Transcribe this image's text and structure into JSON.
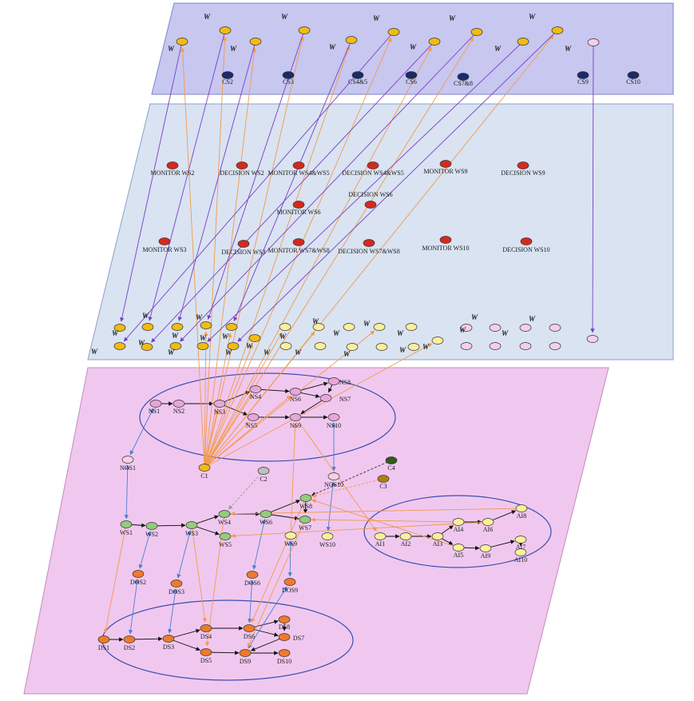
{
  "colors": {
    "layer_top": "#c7c7f0",
    "layer_mid": "#d9e3f2",
    "layer_bottom": "#f0c8ef",
    "node_yellow": "#f2bb12",
    "node_navy": "#1b2a6b",
    "node_red": "#d42a1e",
    "node_pink": "#e8a6d8",
    "node_lightpink": "#f5cfe8",
    "node_green": "#93cc7a",
    "node_orange": "#f07a2a",
    "node_lightyellow": "#fbef9c",
    "edge_purple": "#7a3fc4",
    "edge_orange": "#f39a4a",
    "edge_blue": "#4a7fd0",
    "edge_black": "#111111"
  },
  "top_layer": {
    "w_labels": [
      "W",
      "W",
      "W",
      "W",
      "W",
      "W",
      "W",
      "W",
      "W",
      "W",
      "W",
      "W",
      "W",
      "W"
    ],
    "cs_labels": [
      "CS2",
      "CS3",
      "CS4&5",
      "CS6",
      "CS7&8",
      "CS9",
      "CS10"
    ]
  },
  "mid_layer": {
    "monitors": [
      "MONITOR WS2",
      "MONITOR WS4&WS5",
      "MONITOR WS6",
      "MONITOR WS9",
      "MONITOR WS3",
      "MONITOR WS7&WS8",
      "MONITOR WS10"
    ],
    "decisions": [
      "DECISION WS2",
      "DECISION WS4&WS5",
      "DECISION WS6",
      "DECISION WS9",
      "DECISION WS3",
      "DECISION WS7&WS8",
      "DECISION WS10"
    ],
    "w_labels": [
      "W",
      "W",
      "W",
      "W",
      "W",
      "W",
      "W",
      "W",
      "W",
      "W",
      "W",
      "W",
      "W",
      "W",
      "W",
      "W",
      "W",
      "W",
      "W",
      "W",
      "W",
      "W",
      "W",
      "W",
      "W"
    ]
  },
  "bottom_layer": {
    "ns": [
      "NS1",
      "NS2",
      "NS3",
      "NS4",
      "NS5",
      "NS6",
      "NS7",
      "NS8",
      "NS9",
      "NS10"
    ],
    "ws": [
      "WS1",
      "WS2",
      "WS3",
      "WS4",
      "WS5",
      "WS6",
      "WS7",
      "WS8",
      "WS9",
      "WS10"
    ],
    "ai": [
      "AI1",
      "AI2",
      "AI3",
      "AI4",
      "AI5",
      "AI6",
      "AI7",
      "AI8",
      "AI9",
      "AI10"
    ],
    "ds": [
      "DS1",
      "DS2",
      "DS3",
      "DS4",
      "DS5",
      "DS6",
      "DS7",
      "DS8",
      "DS9",
      "DS10"
    ],
    "dos": [
      "DOS2",
      "DOS3",
      "DOS6",
      "DOS9"
    ],
    "nos": [
      "NOS1",
      "NOS10"
    ],
    "c": [
      "C1",
      "C2",
      "C3",
      "C4"
    ]
  }
}
